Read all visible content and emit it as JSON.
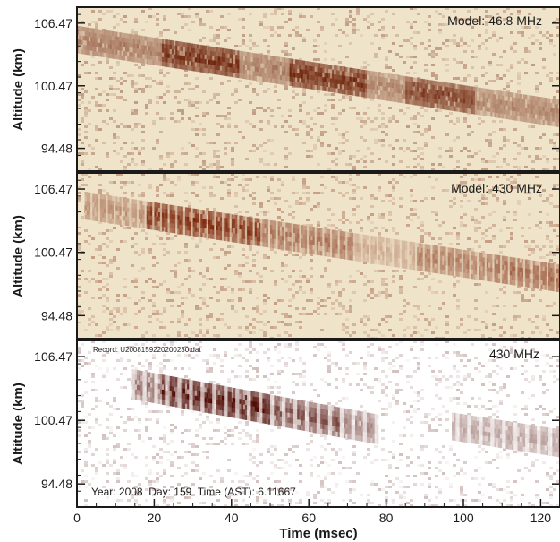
{
  "chart_data": [
    {
      "type": "heatmap",
      "title": "Model: 46.8 MHz",
      "ylabel": "Altitude (km)",
      "y_ticks": [
        "106.47",
        "100.47",
        "94.48"
      ],
      "y_tick_values": [
        106.47,
        100.47,
        94.48
      ],
      "ylim": [
        92.3,
        108.0
      ],
      "xlim": [
        0,
        125
      ],
      "colormap": [
        "#efe3c9",
        "#6b1e06"
      ],
      "trail": {
        "alt_start": 104.9,
        "alt_end": 97.8,
        "width_km": 2.6,
        "x_start": 0,
        "x_end": 125
      },
      "intensity_segments": [
        {
          "x": [
            0,
            22
          ],
          "level": 0.55
        },
        {
          "x": [
            22,
            42
          ],
          "level": 0.95
        },
        {
          "x": [
            42,
            55
          ],
          "level": 0.55
        },
        {
          "x": [
            55,
            75
          ],
          "level": 0.95
        },
        {
          "x": [
            75,
            85
          ],
          "level": 0.5
        },
        {
          "x": [
            85,
            103
          ],
          "level": 0.85
        },
        {
          "x": [
            103,
            125
          ],
          "level": 0.5
        }
      ]
    },
    {
      "type": "heatmap",
      "title": "Model: 430 MHz",
      "ylabel": "Altitude (km)",
      "y_ticks": [
        "106.47",
        "100.47",
        "94.48"
      ],
      "y_tick_values": [
        106.47,
        100.47,
        94.48
      ],
      "ylim": [
        92.3,
        108.0
      ],
      "xlim": [
        0,
        125
      ],
      "colormap": [
        "#efe3c9",
        "#7a2207"
      ],
      "trail": {
        "alt_start": 104.9,
        "alt_end": 98.0,
        "width_km": 2.6,
        "x_start": 2,
        "x_end": 125
      },
      "fringe_period_msec": 2.0,
      "intensity_segments": [
        {
          "x": [
            2,
            18
          ],
          "level": 0.45
        },
        {
          "x": [
            18,
            48
          ],
          "level": 0.95
        },
        {
          "x": [
            48,
            72
          ],
          "level": 0.6
        },
        {
          "x": [
            72,
            88
          ],
          "level": 0.3
        },
        {
          "x": [
            88,
            108
          ],
          "level": 0.55
        },
        {
          "x": [
            108,
            125
          ],
          "level": 0.65
        }
      ]
    },
    {
      "type": "heatmap",
      "title": "430 MHz",
      "record": "Record: U2008159220200230.dat",
      "info": "Year: 2008  Day: 159  Time (AST): 6.11667",
      "xlabel": "Time (msec)",
      "ylabel": "Altitude (km)",
      "x_ticks": [
        0,
        20,
        40,
        60,
        80,
        100,
        120
      ],
      "y_ticks": [
        "106.47",
        "100.47",
        "94.48"
      ],
      "y_tick_values": [
        106.47,
        100.47,
        94.48
      ],
      "ylim": [
        92.3,
        108.0
      ],
      "xlim": [
        0,
        125
      ],
      "colormap": [
        "#ffffff",
        "#4f0c04"
      ],
      "trail": {
        "alt_start": 103.9,
        "alt_end": 99.6,
        "width_km": 2.8,
        "x_start": 14,
        "x_end": 78
      },
      "faint_trail": {
        "alt_start": 99.9,
        "alt_end": 98.3,
        "width_km": 2.6,
        "x_start": 97,
        "x_end": 125,
        "level": 0.4
      },
      "fringe_period_msec": 3.0,
      "intensity_segments": [
        {
          "x": [
            14,
            22
          ],
          "level": 0.6
        },
        {
          "x": [
            22,
            50
          ],
          "level": 1.0
        },
        {
          "x": [
            50,
            68
          ],
          "level": 0.75
        },
        {
          "x": [
            68,
            78
          ],
          "level": 0.5
        }
      ]
    }
  ]
}
